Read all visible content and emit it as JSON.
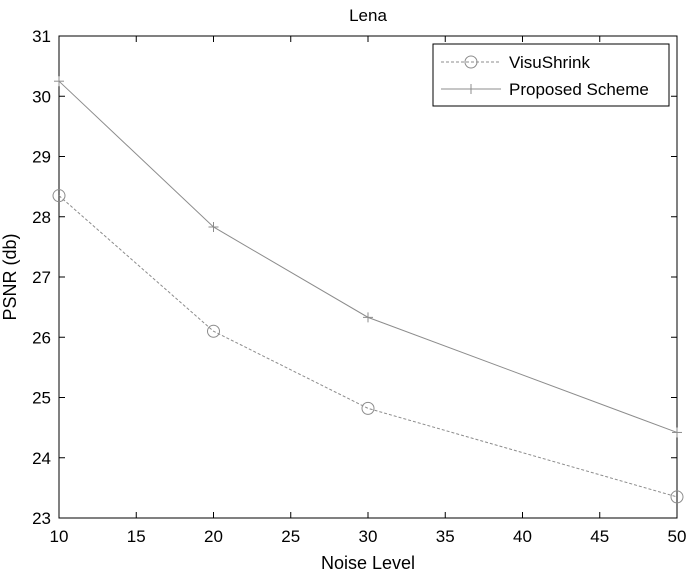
{
  "chart_data": {
    "type": "line",
    "title": "Lena",
    "xlabel": "Noise Level",
    "ylabel": "PSNR (db)",
    "xlim": [
      10,
      50
    ],
    "ylim": [
      23,
      31
    ],
    "xticks": [
      "10",
      "15",
      "20",
      "25",
      "30",
      "35",
      "40",
      "45",
      "50"
    ],
    "yticks": [
      "23",
      "24",
      "25",
      "26",
      "27",
      "28",
      "29",
      "30",
      "31"
    ],
    "grid": false,
    "legend_position": "top-right",
    "x": [
      10,
      20,
      30,
      50
    ],
    "series": [
      {
        "name": "VisuShrink",
        "values": [
          28.35,
          26.1,
          24.82,
          23.35
        ],
        "marker": "circle",
        "line_style": "dashed",
        "color": "#8c8c8c"
      },
      {
        "name": "Proposed Scheme",
        "values": [
          30.25,
          27.83,
          26.33,
          24.42
        ],
        "marker": "plus",
        "line_style": "solid",
        "color": "#8c8c8c"
      }
    ]
  }
}
